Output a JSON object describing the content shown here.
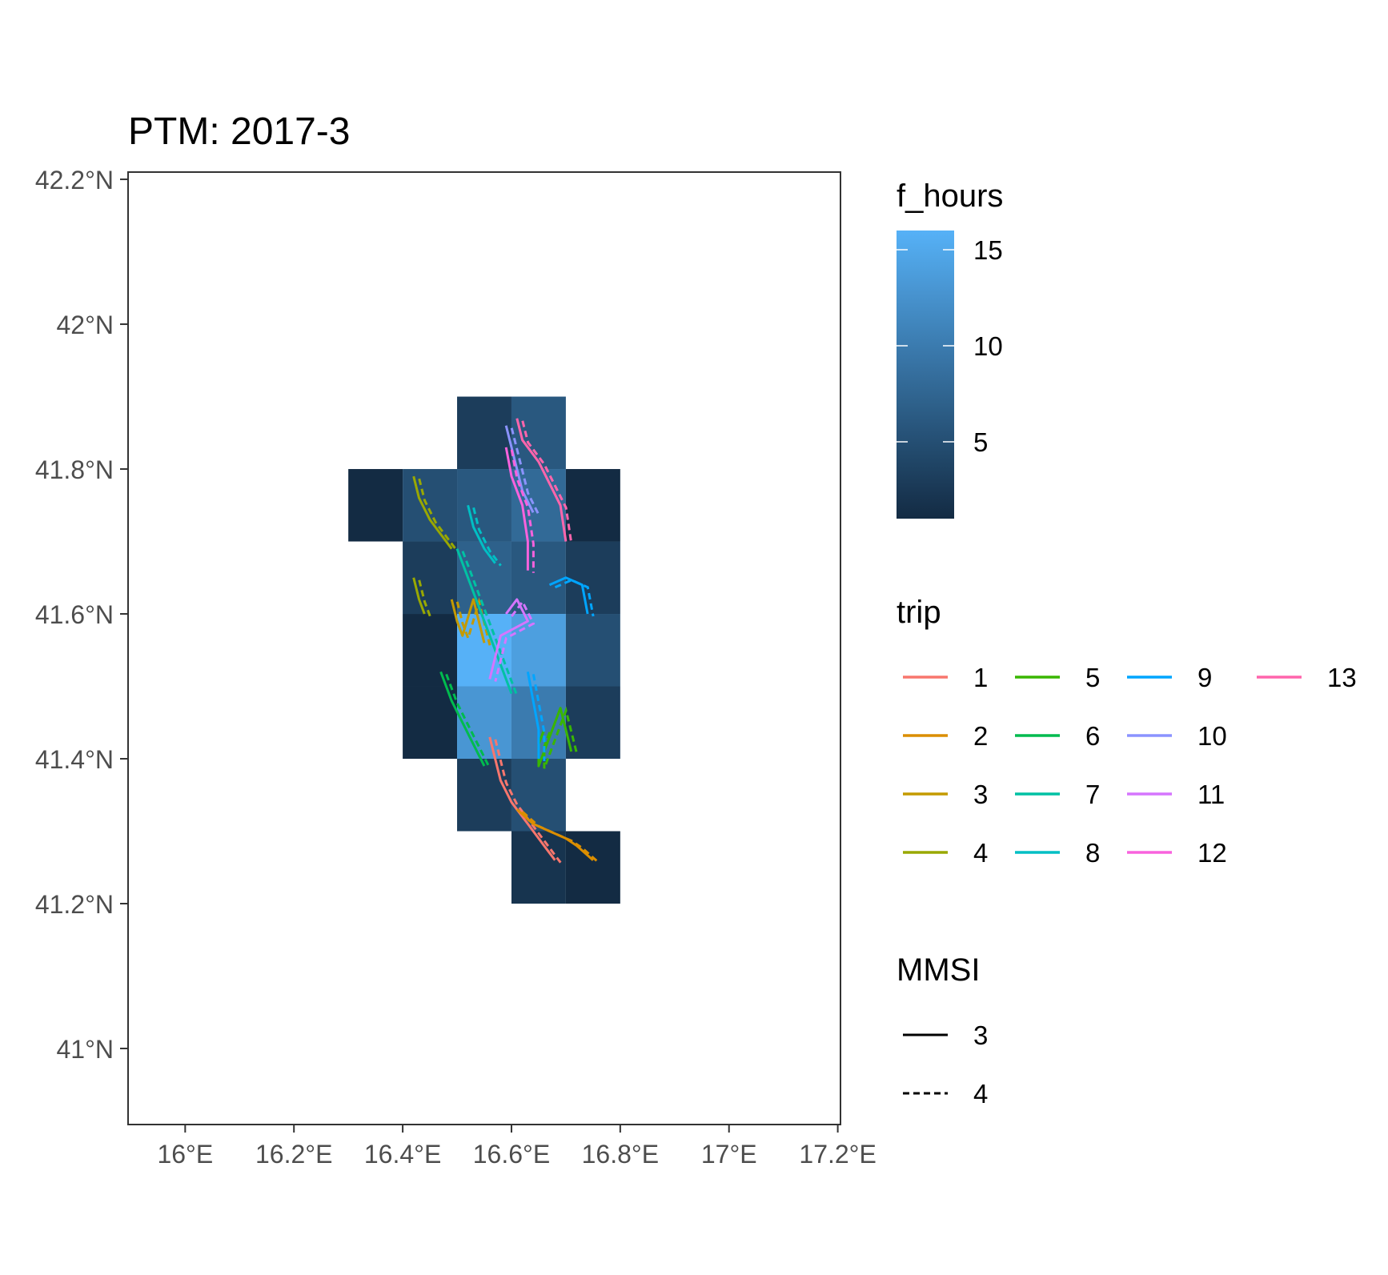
{
  "chart_data": {
    "type": "heatmap",
    "title": "PTM: 2017-3",
    "xlabel": "",
    "ylabel": "",
    "xlim": [
      15.895,
      17.205
    ],
    "ylim": [
      40.895,
      42.21
    ],
    "x_ticks": [
      {
        "value": 16.0,
        "label": "16°E"
      },
      {
        "value": 16.2,
        "label": "16.2°E"
      },
      {
        "value": 16.4,
        "label": "16.4°E"
      },
      {
        "value": 16.6,
        "label": "16.6°E"
      },
      {
        "value": 16.8,
        "label": "16.8°E"
      },
      {
        "value": 17.0,
        "label": "17°E"
      },
      {
        "value": 17.2,
        "label": "17.2°E"
      }
    ],
    "y_ticks": [
      {
        "value": 41.0,
        "label": "41°N"
      },
      {
        "value": 41.2,
        "label": "41.2°N"
      },
      {
        "value": 41.4,
        "label": "41.4°N"
      },
      {
        "value": 41.6,
        "label": "41.6°N"
      },
      {
        "value": 41.8,
        "label": "41.8°N"
      },
      {
        "value": 42.0,
        "label": "42°N"
      },
      {
        "value": 42.2,
        "label": "42.2°N"
      }
    ],
    "grid": false,
    "cell_size": 0.1,
    "fill_scale": {
      "title": "f_hours",
      "low_color": "#132b43",
      "high_color": "#56b1f7",
      "min": 1,
      "max": 16,
      "breaks": [
        {
          "value": 5,
          "label": "5"
        },
        {
          "value": 10,
          "label": "10"
        },
        {
          "value": 15,
          "label": "15"
        }
      ]
    },
    "cells": [
      {
        "lon": 16.5,
        "lat": 41.8,
        "f_hours": 3
      },
      {
        "lon": 16.6,
        "lat": 41.8,
        "f_hours": 6
      },
      {
        "lon": 16.3,
        "lat": 41.7,
        "f_hours": 1
      },
      {
        "lon": 16.4,
        "lat": 41.7,
        "f_hours": 5
      },
      {
        "lon": 16.5,
        "lat": 41.7,
        "f_hours": 6
      },
      {
        "lon": 16.6,
        "lat": 41.7,
        "f_hours": 8
      },
      {
        "lon": 16.7,
        "lat": 41.7,
        "f_hours": 1
      },
      {
        "lon": 16.4,
        "lat": 41.6,
        "f_hours": 3
      },
      {
        "lon": 16.5,
        "lat": 41.6,
        "f_hours": 7
      },
      {
        "lon": 16.6,
        "lat": 41.6,
        "f_hours": 6
      },
      {
        "lon": 16.7,
        "lat": 41.6,
        "f_hours": 3
      },
      {
        "lon": 16.4,
        "lat": 41.5,
        "f_hours": 1
      },
      {
        "lon": 16.5,
        "lat": 41.5,
        "f_hours": 16
      },
      {
        "lon": 16.6,
        "lat": 41.5,
        "f_hours": 14
      },
      {
        "lon": 16.7,
        "lat": 41.5,
        "f_hours": 5
      },
      {
        "lon": 16.4,
        "lat": 41.4,
        "f_hours": 1
      },
      {
        "lon": 16.5,
        "lat": 41.4,
        "f_hours": 13
      },
      {
        "lon": 16.6,
        "lat": 41.4,
        "f_hours": 10
      },
      {
        "lon": 16.7,
        "lat": 41.4,
        "f_hours": 3
      },
      {
        "lon": 16.5,
        "lat": 41.3,
        "f_hours": 3
      },
      {
        "lon": 16.6,
        "lat": 41.3,
        "f_hours": 5
      },
      {
        "lon": 16.6,
        "lat": 41.2,
        "f_hours": 2
      },
      {
        "lon": 16.7,
        "lat": 41.2,
        "f_hours": 1
      }
    ],
    "legends": {
      "trip": {
        "title": "trip",
        "items": [
          {
            "label": "1",
            "color": "#f8766d"
          },
          {
            "label": "2",
            "color": "#db8e00"
          },
          {
            "label": "3",
            "color": "#c49a00"
          },
          {
            "label": "4",
            "color": "#99a800"
          },
          {
            "label": "5",
            "color": "#39b600"
          },
          {
            "label": "6",
            "color": "#00bb4e"
          },
          {
            "label": "7",
            "color": "#00c1a3"
          },
          {
            "label": "8",
            "color": "#00bfc4"
          },
          {
            "label": "9",
            "color": "#00a5ff"
          },
          {
            "label": "10",
            "color": "#8b93ff"
          },
          {
            "label": "11",
            "color": "#d575fe"
          },
          {
            "label": "12",
            "color": "#f962dd"
          },
          {
            "label": "13",
            "color": "#ff65ac"
          }
        ]
      },
      "mmsi": {
        "title": "MMSI",
        "items": [
          {
            "label": "3",
            "linetype": "solid"
          },
          {
            "label": "4",
            "linetype": "dashed"
          }
        ]
      }
    },
    "series": [
      {
        "trip": "1",
        "points": [
          [
            16.56,
            41.43
          ],
          [
            16.57,
            41.4
          ],
          [
            16.58,
            41.37
          ],
          [
            16.6,
            41.34
          ],
          [
            16.63,
            41.31
          ],
          [
            16.66,
            41.28
          ],
          [
            16.68,
            41.26
          ]
        ]
      },
      {
        "trip": "2",
        "points": [
          [
            16.61,
            41.33
          ],
          [
            16.64,
            41.31
          ],
          [
            16.67,
            41.3
          ],
          [
            16.7,
            41.29
          ],
          [
            16.72,
            41.28
          ],
          [
            16.75,
            41.26
          ]
        ]
      },
      {
        "trip": "3",
        "points": [
          [
            16.49,
            41.62
          ],
          [
            16.5,
            41.59
          ],
          [
            16.51,
            41.57
          ],
          [
            16.53,
            41.62
          ],
          [
            16.54,
            41.59
          ],
          [
            16.55,
            41.56
          ]
        ]
      },
      {
        "trip": "4",
        "points": [
          [
            16.42,
            41.79
          ],
          [
            16.43,
            41.76
          ],
          [
            16.45,
            41.73
          ],
          [
            16.47,
            41.71
          ],
          [
            16.49,
            41.69
          ]
        ]
      },
      {
        "trip": "4b",
        "points": [
          [
            16.42,
            41.65
          ],
          [
            16.43,
            41.62
          ],
          [
            16.44,
            41.6
          ]
        ]
      },
      {
        "trip": "5",
        "points": [
          [
            16.66,
            41.44
          ],
          [
            16.65,
            41.42
          ],
          [
            16.65,
            41.39
          ],
          [
            16.69,
            41.47
          ],
          [
            16.7,
            41.44
          ],
          [
            16.71,
            41.41
          ]
        ]
      },
      {
        "trip": "6",
        "points": [
          [
            16.47,
            41.52
          ],
          [
            16.49,
            41.48
          ],
          [
            16.51,
            41.45
          ],
          [
            16.53,
            41.42
          ],
          [
            16.55,
            41.39
          ]
        ]
      },
      {
        "trip": "7",
        "points": [
          [
            16.5,
            41.69
          ],
          [
            16.52,
            41.65
          ],
          [
            16.54,
            41.61
          ],
          [
            16.56,
            41.57
          ],
          [
            16.58,
            41.53
          ],
          [
            16.6,
            41.49
          ]
        ]
      },
      {
        "trip": "8",
        "points": [
          [
            16.52,
            41.75
          ],
          [
            16.53,
            41.72
          ],
          [
            16.55,
            41.69
          ],
          [
            16.57,
            41.67
          ]
        ]
      },
      {
        "trip": "9",
        "points": [
          [
            16.67,
            41.64
          ],
          [
            16.7,
            41.65
          ],
          [
            16.73,
            41.64
          ],
          [
            16.74,
            41.6
          ]
        ]
      },
      {
        "trip": "9b",
        "points": [
          [
            16.63,
            41.52
          ],
          [
            16.64,
            41.48
          ],
          [
            16.65,
            41.44
          ],
          [
            16.65,
            41.4
          ]
        ]
      },
      {
        "trip": "10",
        "points": [
          [
            16.59,
            41.86
          ],
          [
            16.6,
            41.83
          ],
          [
            16.61,
            41.8
          ],
          [
            16.62,
            41.77
          ],
          [
            16.64,
            41.74
          ]
        ]
      },
      {
        "trip": "11",
        "points": [
          [
            16.59,
            41.6
          ],
          [
            16.61,
            41.62
          ],
          [
            16.63,
            41.59
          ],
          [
            16.58,
            41.57
          ],
          [
            16.57,
            41.54
          ],
          [
            16.56,
            41.51
          ]
        ]
      },
      {
        "trip": "12",
        "points": [
          [
            16.59,
            41.83
          ],
          [
            16.6,
            41.79
          ],
          [
            16.62,
            41.75
          ],
          [
            16.63,
            41.7
          ],
          [
            16.63,
            41.66
          ]
        ]
      },
      {
        "trip": "13",
        "points": [
          [
            16.61,
            41.87
          ],
          [
            16.62,
            41.84
          ],
          [
            16.65,
            41.81
          ],
          [
            16.67,
            41.78
          ],
          [
            16.69,
            41.75
          ],
          [
            16.7,
            41.7
          ]
        ]
      }
    ]
  }
}
